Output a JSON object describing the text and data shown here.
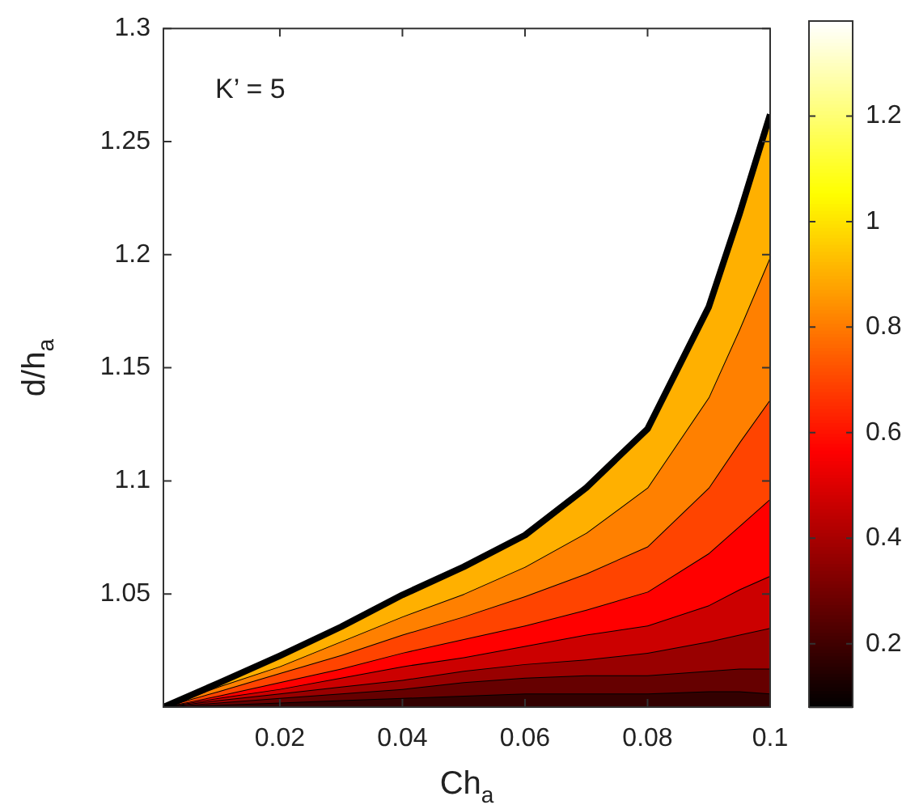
{
  "chart_data": {
    "type": "area",
    "xlabel": "Ch$_{a}$",
    "ylabel": "d/h$_{a}$",
    "annotations": [
      "K’ = 5"
    ],
    "x": [
      0.001,
      0.01,
      0.02,
      0.03,
      0.04,
      0.05,
      0.06,
      0.07,
      0.08,
      0.09,
      0.095,
      0.1
    ],
    "series": [
      {
        "color": "#330000",
        "values": [
          1.0,
          1.001,
          1.002,
          1.003,
          1.004,
          1.005,
          1.006,
          1.006,
          1.006,
          1.007,
          1.007,
          1.006
        ]
      },
      {
        "color": "#660000",
        "values": [
          1.0,
          1.002,
          1.004,
          1.006,
          1.008,
          1.011,
          1.013,
          1.014,
          1.014,
          1.016,
          1.017,
          1.017
        ]
      },
      {
        "color": "#990000",
        "values": [
          1.0,
          1.003,
          1.006,
          1.009,
          1.012,
          1.016,
          1.019,
          1.021,
          1.024,
          1.029,
          1.032,
          1.035
        ]
      },
      {
        "color": "#cc0000",
        "values": [
          1.0,
          1.004,
          1.008,
          1.013,
          1.018,
          1.022,
          1.027,
          1.032,
          1.036,
          1.045,
          1.052,
          1.058
        ]
      },
      {
        "color": "#ff0000",
        "values": [
          1.0,
          1.005,
          1.011,
          1.017,
          1.024,
          1.03,
          1.036,
          1.043,
          1.051,
          1.068,
          1.08,
          1.092
        ]
      },
      {
        "color": "#ff4400",
        "values": [
          1.0,
          1.007,
          1.015,
          1.023,
          1.032,
          1.04,
          1.049,
          1.059,
          1.071,
          1.097,
          1.117,
          1.136
        ]
      },
      {
        "color": "#ff8000",
        "values": [
          1.0,
          1.009,
          1.018,
          1.029,
          1.04,
          1.05,
          1.062,
          1.077,
          1.097,
          1.137,
          1.167,
          1.199
        ]
      },
      {
        "color": "#ffb000",
        "values": [
          1.0,
          1.0106,
          1.0227,
          1.0355,
          1.0496,
          1.062,
          1.076,
          1.097,
          1.123,
          1.177,
          1.218,
          1.262
        ]
      }
    ],
    "xlim": [
      0.001,
      0.1
    ],
    "xticks": [
      0.02,
      0.04,
      0.06,
      0.08,
      0.1
    ],
    "ylim": [
      1.0,
      1.3
    ],
    "yticks": [
      1.05,
      1.1,
      1.15,
      1.2,
      1.25,
      1.3
    ],
    "clim": [
      0.08,
      1.38
    ],
    "cticks": [
      0.2,
      0.4,
      0.6,
      0.8,
      1,
      1.2
    ],
    "grid": false,
    "legend": false,
    "marker": "none"
  }
}
